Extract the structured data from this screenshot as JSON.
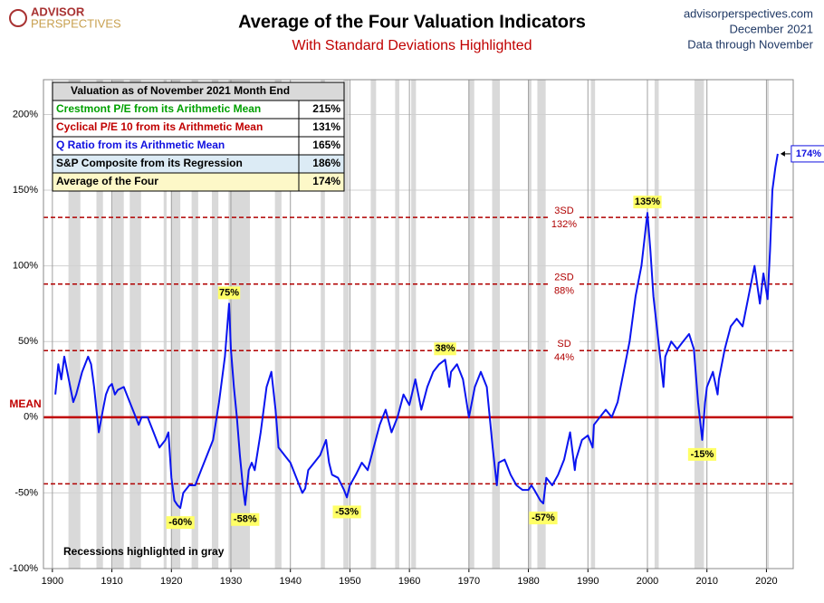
{
  "chart_data": {
    "type": "line",
    "title": "Average of the Four Valuation Indicators",
    "subtitle": "With Standard Deviations Highlighted",
    "logo": [
      "ADVISOR",
      "PERSPECTIVES"
    ],
    "source": [
      "advisorperspectives.com",
      "December 2021",
      "Data through November"
    ],
    "note": "Recessions highlighted in gray",
    "xlim": [
      1898.5,
      2024.5
    ],
    "xticks": [
      1900,
      1910,
      1920,
      1930,
      1940,
      1950,
      1960,
      1970,
      1980,
      1990,
      2000,
      2010,
      2020
    ],
    "ylim": [
      -100,
      223
    ],
    "yticks": [
      {
        "value": -100,
        "label": "-100%"
      },
      {
        "value": -50,
        "label": "-50%"
      },
      {
        "value": 0,
        "label": "0%"
      },
      {
        "value": 50,
        "label": "50%"
      },
      {
        "value": 100,
        "label": "100%"
      },
      {
        "value": 150,
        "label": "150%"
      },
      {
        "value": 200,
        "label": "200%"
      }
    ],
    "grid": true,
    "recessions": [
      [
        1902.7,
        1904.7
      ],
      [
        1907.4,
        1908.5
      ],
      [
        1910.1,
        1912.0
      ],
      [
        1913.0,
        1914.9
      ],
      [
        1918.7,
        1919.2
      ],
      [
        1920.0,
        1921.5
      ],
      [
        1923.4,
        1924.5
      ],
      [
        1926.8,
        1927.9
      ],
      [
        1929.6,
        1933.2
      ],
      [
        1937.4,
        1938.5
      ],
      [
        1945.1,
        1945.8
      ],
      [
        1948.9,
        1949.8
      ],
      [
        1953.5,
        1954.4
      ],
      [
        1957.6,
        1958.3
      ],
      [
        1960.3,
        1961.1
      ],
      [
        1969.9,
        1970.9
      ],
      [
        1973.9,
        1975.2
      ],
      [
        1980.0,
        1980.5
      ],
      [
        1981.5,
        1982.9
      ],
      [
        1990.5,
        1991.2
      ],
      [
        2001.2,
        2001.9
      ],
      [
        2007.9,
        2009.5
      ],
      [
        2020.1,
        2020.4
      ]
    ],
    "mean": {
      "value": 0,
      "label": "MEAN"
    },
    "reference_lines": [
      {
        "value": 132,
        "label": "3SD",
        "value_label": "132%"
      },
      {
        "value": 88,
        "label": "2SD",
        "value_label": "88%"
      },
      {
        "value": 44,
        "label": "SD",
        "value_label": "44%"
      },
      {
        "value": -44
      }
    ],
    "series": [
      {
        "name": "Average of the Four",
        "color": "#0a14f0",
        "x": [
          1900.5,
          1901,
          1901.5,
          1902,
          1902.5,
          1903,
          1903.5,
          1904,
          1905,
          1906,
          1906.5,
          1907,
          1907.8,
          1908.5,
          1909,
          1909.5,
          1910,
          1910.5,
          1911,
          1912,
          1913,
          1914,
          1914.5,
          1915,
          1916,
          1917,
          1918,
          1919,
          1919.5,
          1920,
          1920.5,
          1921,
          1921.5,
          1922,
          1923,
          1924,
          1925,
          1926,
          1927,
          1928,
          1929,
          1929.7,
          1930,
          1930.5,
          1931,
          1931.5,
          1932,
          1932.4,
          1933,
          1933.5,
          1934,
          1935,
          1936,
          1936.8,
          1937.5,
          1938,
          1939,
          1940,
          1941,
          1942,
          1942.5,
          1943,
          1944,
          1945,
          1946,
          1946.5,
          1947,
          1948,
          1949,
          1949.5,
          1950,
          1951,
          1952,
          1953,
          1954,
          1955,
          1956,
          1957,
          1958,
          1959,
          1960,
          1961,
          1962,
          1963,
          1964,
          1965,
          1966,
          1966.7,
          1967,
          1968,
          1969,
          1970,
          1971,
          1972,
          1973,
          1974,
          1974.7,
          1975,
          1976,
          1977,
          1978,
          1979,
          1980,
          1980.5,
          1981,
          1982,
          1982.5,
          1983,
          1984,
          1985,
          1986,
          1987,
          1987.8,
          1988,
          1989,
          1990,
          1990.8,
          1991,
          1992,
          1993,
          1994,
          1995,
          1996,
          1997,
          1998,
          1999,
          2000,
          2000.5,
          2001,
          2002,
          2002.7,
          2003,
          2004,
          2005,
          2006,
          2007,
          2007.8,
          2008.5,
          2009.2,
          2009.7,
          2010,
          2011,
          2011.8,
          2012,
          2013,
          2014,
          2015,
          2016,
          2017,
          2018,
          2018.9,
          2019.5,
          2020.2,
          2020.6,
          2021,
          2021.5,
          2021.9
        ],
        "values": [
          15,
          35,
          25,
          40,
          30,
          20,
          10,
          15,
          30,
          40,
          35,
          20,
          -10,
          5,
          15,
          20,
          22,
          15,
          18,
          20,
          10,
          0,
          -5,
          0,
          0,
          -10,
          -20,
          -15,
          -10,
          -40,
          -55,
          -58,
          -60,
          -50,
          -45,
          -45,
          -35,
          -25,
          -15,
          10,
          40,
          75,
          45,
          20,
          0,
          -25,
          -45,
          -58,
          -35,
          -30,
          -35,
          -10,
          20,
          30,
          5,
          -20,
          -25,
          -30,
          -40,
          -50,
          -47,
          -35,
          -30,
          -25,
          -15,
          -30,
          -38,
          -40,
          -48,
          -53,
          -45,
          -38,
          -30,
          -35,
          -20,
          -5,
          5,
          -10,
          0,
          15,
          8,
          25,
          5,
          20,
          30,
          35,
          38,
          20,
          30,
          35,
          25,
          0,
          20,
          30,
          20,
          -20,
          -45,
          -30,
          -28,
          -38,
          -45,
          -48,
          -48,
          -45,
          -48,
          -55,
          -57,
          -40,
          -45,
          -38,
          -28,
          -10,
          -35,
          -28,
          -15,
          -12,
          -20,
          -5,
          0,
          5,
          0,
          10,
          30,
          50,
          80,
          100,
          135,
          110,
          80,
          45,
          20,
          40,
          50,
          45,
          50,
          55,
          45,
          10,
          -15,
          10,
          20,
          30,
          15,
          25,
          45,
          60,
          65,
          60,
          80,
          100,
          75,
          95,
          78,
          110,
          150,
          165,
          174
        ]
      }
    ],
    "annotations": [
      {
        "x": 1921.5,
        "value": -60,
        "label": "-60%"
      },
      {
        "x": 1929.7,
        "value": 75,
        "label": "75%"
      },
      {
        "x": 1932.4,
        "value": -58,
        "label": "-58%"
      },
      {
        "x": 1949.5,
        "value": -53,
        "label": "-53%"
      },
      {
        "x": 1966,
        "value": 38,
        "label": "38%"
      },
      {
        "x": 1982.5,
        "value": -57,
        "label": "-57%"
      },
      {
        "x": 2000,
        "value": 135,
        "label": "135%"
      },
      {
        "x": 2009.2,
        "value": -15,
        "label": "-15%"
      }
    ],
    "current": {
      "x": 2021.9,
      "value": 174,
      "label": "174%"
    },
    "table": {
      "title": "Valuation as of November 2021 Month End",
      "rows": [
        {
          "label": "Crestmont P/E from its Arithmetic Mean",
          "value": "215%",
          "color": "#00a000",
          "bg": "#ffffff"
        },
        {
          "label": "Cyclical P/E 10 from its Arithmetic Mean",
          "value": "131%",
          "color": "#c00000",
          "bg": "#ffffff"
        },
        {
          "label": "Q Ratio from its Arithmetic Mean",
          "value": "165%",
          "color": "#1010e0",
          "bg": "#ffffff"
        },
        {
          "label": "S&P Composite from its Regression",
          "value": "186%",
          "color": "#000000",
          "bg": "#dcebf5"
        },
        {
          "label": "Average of the Four",
          "value": "174%",
          "color": "#000000",
          "bg": "#fdf8c8"
        }
      ]
    }
  }
}
